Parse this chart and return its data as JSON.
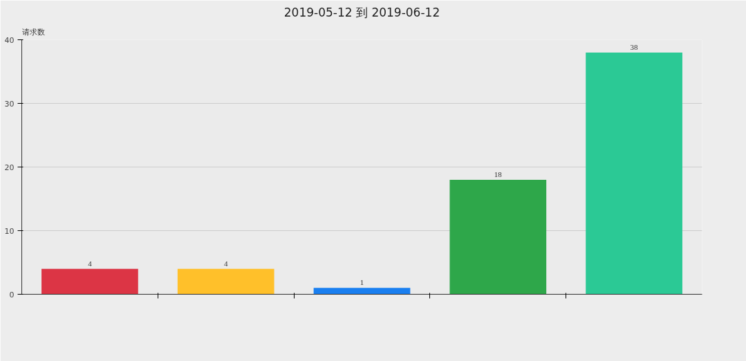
{
  "chart_data": {
    "type": "bar",
    "title": "2019-05-12 到 2019-06-12",
    "ylabel": "请求数",
    "categories": [
      null,
      null,
      null,
      null,
      null
    ],
    "values": [
      4,
      4,
      1,
      18,
      38
    ],
    "colors": [
      "#dc3545",
      "#ffc02a",
      "#1a7ff0",
      "#2ea74a",
      "#2bc995"
    ],
    "ylim": [
      0,
      40
    ],
    "yticks": [
      0,
      10,
      20,
      30,
      40
    ],
    "grid": "y",
    "data_labels": true
  }
}
